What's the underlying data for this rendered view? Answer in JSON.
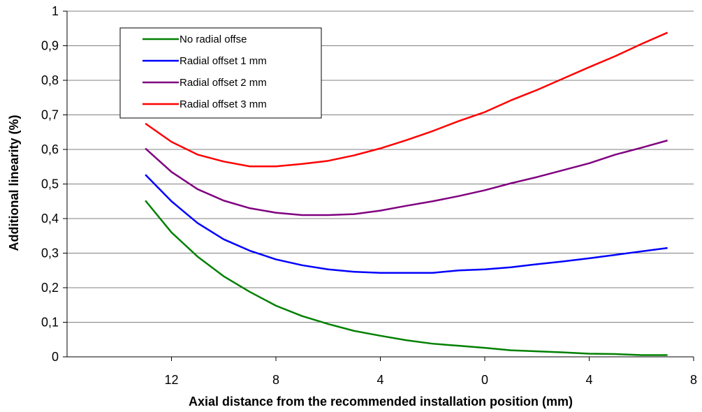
{
  "chart_data": {
    "type": "line",
    "title": "",
    "xlabel": "Axial distance from the recommended installation position (mm)",
    "ylabel": "Additional linearity (%)",
    "x_tick_labels": [
      "12",
      "8",
      "4",
      "0",
      "4",
      "8"
    ],
    "y_tick_labels": [
      "0",
      "0,1",
      "0,2",
      "0,3",
      "0,4",
      "0,5",
      "0,6",
      "0,7",
      "0,8",
      "0,9",
      "1"
    ],
    "ylim": [
      0,
      1
    ],
    "x_signed_range": [
      -16,
      8
    ],
    "grid": "horizontal",
    "legend_position": "top-left",
    "x": [
      -13,
      -12,
      -11,
      -10,
      -9,
      -8,
      -7,
      -6,
      -5,
      -4,
      -3,
      -2,
      -1,
      0,
      1,
      2,
      3,
      4,
      5,
      6,
      7
    ],
    "series": [
      {
        "name": "No radial offse",
        "color": "#008000",
        "values": [
          0.452,
          0.36,
          0.29,
          0.233,
          0.188,
          0.148,
          0.118,
          0.095,
          0.075,
          0.061,
          0.048,
          0.038,
          0.032,
          0.026,
          0.019,
          0.016,
          0.013,
          0.009,
          0.008,
          0.005,
          0.005
        ]
      },
      {
        "name": "Radial offset 1 mm",
        "color": "#0000ff",
        "values": [
          0.527,
          0.45,
          0.387,
          0.34,
          0.307,
          0.282,
          0.265,
          0.253,
          0.246,
          0.243,
          0.243,
          0.243,
          0.25,
          0.253,
          0.259,
          0.268,
          0.276,
          0.285,
          0.295,
          0.305,
          0.315
        ]
      },
      {
        "name": "Radial offset 2 mm",
        "color": "#800080",
        "values": [
          0.603,
          0.535,
          0.485,
          0.452,
          0.43,
          0.417,
          0.41,
          0.41,
          0.413,
          0.423,
          0.437,
          0.45,
          0.465,
          0.482,
          0.502,
          0.52,
          0.54,
          0.56,
          0.585,
          0.605,
          0.626
        ]
      },
      {
        "name": "Radial offset 3 mm",
        "color": "#ff0000",
        "values": [
          0.675,
          0.622,
          0.585,
          0.565,
          0.551,
          0.551,
          0.558,
          0.567,
          0.583,
          0.603,
          0.627,
          0.653,
          0.682,
          0.708,
          0.742,
          0.772,
          0.805,
          0.838,
          0.87,
          0.905,
          0.938
        ]
      }
    ]
  }
}
